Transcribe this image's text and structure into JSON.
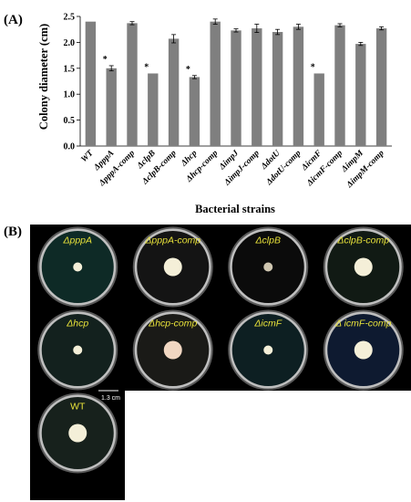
{
  "panels": {
    "a_label": "(A)",
    "b_label": "(B)"
  },
  "colors": {
    "bar": "#7f7f7f",
    "plate_bg": "#000000",
    "label": "#e8e23a"
  },
  "chart_data": {
    "type": "bar",
    "title": "",
    "xlabel": "Bacterial strains",
    "ylabel": "Colony diameter (cm)",
    "ylim": [
      0,
      2.5
    ],
    "yticks": [
      "0.0",
      "0.5",
      "1.0",
      "1.5",
      "2.0",
      "2.5"
    ],
    "categories": [
      "WT",
      "ΔpppA",
      "ΔpppA-comp",
      "ΔclpB",
      "ΔclpB-comp",
      "Δhcp",
      "Δhcp-comp",
      "ΔimpJ",
      "ΔimpJ-comp",
      "ΔdotU",
      "ΔdotU-comp",
      "ΔicmF",
      "ΔicmF-comp",
      "ΔimpM",
      "ΔimpM-comp"
    ],
    "values": [
      2.4,
      1.5,
      2.37,
      1.4,
      2.07,
      1.33,
      2.4,
      2.23,
      2.27,
      2.2,
      2.3,
      1.4,
      2.33,
      1.97,
      2.27
    ],
    "errors": [
      0,
      0.05,
      0.03,
      0,
      0.08,
      0.03,
      0.05,
      0.03,
      0.08,
      0.05,
      0.05,
      0,
      0.03,
      0.03,
      0.03
    ],
    "significance": [
      "",
      "*",
      "",
      "*",
      "",
      "*",
      "",
      "",
      "",
      "",
      "",
      "*",
      "",
      "",
      ""
    ],
    "grid": false,
    "legend": "none"
  },
  "plates": [
    {
      "label": "ΔpppA",
      "colony": "small",
      "bg": "#0e2a26"
    },
    {
      "label": "ΔpppA-comp",
      "colony": "large",
      "bg": "#141414"
    },
    {
      "label": "ΔclpB",
      "colony": "small",
      "bg": "#0b0b0b"
    },
    {
      "label": "ΔclpB-comp",
      "colony": "large",
      "bg": "#111a14"
    },
    {
      "label": "Δhcp",
      "colony": "small",
      "bg": "#13211e"
    },
    {
      "label": "Δhcp-comp",
      "colony": "large",
      "bg": "#1a1a17"
    },
    {
      "label": "ΔicmF",
      "colony": "small",
      "bg": "#0d1f22"
    },
    {
      "label": "Δ icmF-comp",
      "colony": "large",
      "bg": "#0e1a30"
    },
    {
      "label": "WT",
      "colony": "large",
      "bg": "#17211c"
    }
  ],
  "scale_bar": "1.3 cm"
}
